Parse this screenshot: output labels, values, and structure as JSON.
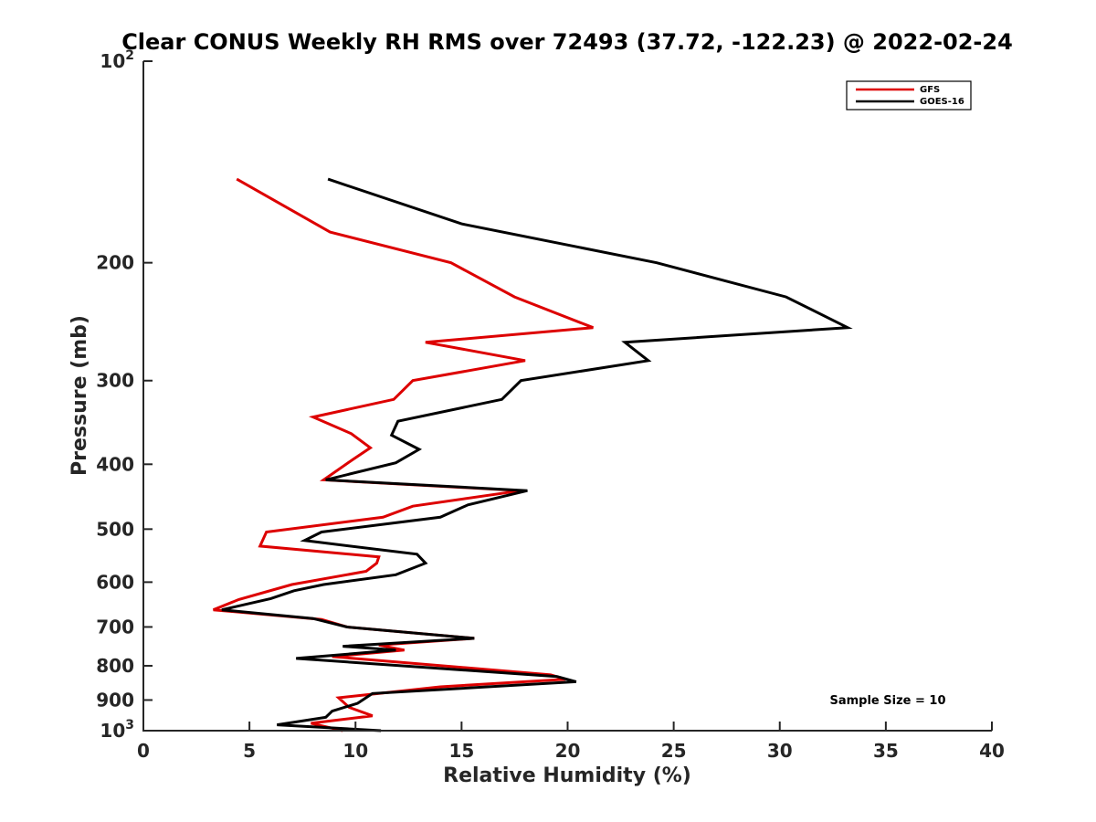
{
  "chart_data": {
    "type": "line",
    "title": "Clear CONUS Weekly RH RMS over 72493 (37.72, -122.23) @ 2022-02-24",
    "xlabel": "Relative Humidity (%)",
    "ylabel": "Pressure (mb)",
    "xlim": [
      0,
      40
    ],
    "ylim": [
      100,
      1000
    ],
    "y_scale": "log",
    "y_reversed": true,
    "grid": false,
    "legend_position": "top-right",
    "x_ticks": [
      "0",
      "5",
      "10",
      "15",
      "20",
      "25",
      "30",
      "35",
      "40"
    ],
    "y_ticks": [
      {
        "value": 100,
        "base": "10",
        "exp": "2"
      },
      {
        "value": 200,
        "label": "200"
      },
      {
        "value": 300,
        "label": "300"
      },
      {
        "value": 400,
        "label": "400"
      },
      {
        "value": 500,
        "label": "500"
      },
      {
        "value": 600,
        "label": "600"
      },
      {
        "value": 700,
        "label": "700"
      },
      {
        "value": 800,
        "label": "800"
      },
      {
        "value": 900,
        "label": "900"
      },
      {
        "value": 1000,
        "base": "10",
        "exp": "3"
      }
    ],
    "annotation": "Sample Size = 10",
    "series": [
      {
        "name": "GFS",
        "color": "#dd0000",
        "points": [
          [
            4.4,
            150
          ],
          [
            8.8,
            180
          ],
          [
            14.5,
            200
          ],
          [
            17.5,
            225
          ],
          [
            21.2,
            250
          ],
          [
            13.3,
            263
          ],
          [
            18.0,
            280
          ],
          [
            12.7,
            300
          ],
          [
            11.8,
            320
          ],
          [
            8.0,
            340
          ],
          [
            9.8,
            360
          ],
          [
            10.7,
            378
          ],
          [
            9.9,
            393
          ],
          [
            8.5,
            422
          ],
          [
            17.8,
            438
          ],
          [
            12.7,
            462
          ],
          [
            11.3,
            480
          ],
          [
            5.8,
            505
          ],
          [
            5.5,
            530
          ],
          [
            11.1,
            550
          ],
          [
            11.0,
            562
          ],
          [
            10.5,
            578
          ],
          [
            7.0,
            605
          ],
          [
            4.5,
            637
          ],
          [
            3.3,
            660
          ],
          [
            8.4,
            682
          ],
          [
            9.6,
            700
          ],
          [
            15.6,
            728
          ],
          [
            11.1,
            745
          ],
          [
            12.3,
            758
          ],
          [
            8.9,
            775
          ],
          [
            19.2,
            825
          ],
          [
            19.9,
            838
          ],
          [
            14.0,
            860
          ],
          [
            9.2,
            893
          ],
          [
            9.7,
            923
          ],
          [
            10.8,
            950
          ],
          [
            7.9,
            975
          ],
          [
            9.4,
            1000
          ]
        ]
      },
      {
        "name": "GOES-16",
        "color": "#000000",
        "points": [
          [
            8.7,
            150
          ],
          [
            15.0,
            175
          ],
          [
            24.2,
            200
          ],
          [
            30.3,
            225
          ],
          [
            33.2,
            250
          ],
          [
            22.7,
            263
          ],
          [
            23.8,
            280
          ],
          [
            17.8,
            300
          ],
          [
            16.9,
            320
          ],
          [
            12.0,
            345
          ],
          [
            11.7,
            362
          ],
          [
            13.0,
            380
          ],
          [
            11.9,
            398
          ],
          [
            8.6,
            422
          ],
          [
            18.1,
            438
          ],
          [
            15.3,
            460
          ],
          [
            14.0,
            480
          ],
          [
            8.4,
            505
          ],
          [
            7.6,
            520
          ],
          [
            12.9,
            545
          ],
          [
            13.3,
            562
          ],
          [
            11.9,
            585
          ],
          [
            8.5,
            605
          ],
          [
            7.1,
            618
          ],
          [
            6.0,
            635
          ],
          [
            3.7,
            660
          ],
          [
            8.0,
            680
          ],
          [
            9.6,
            700
          ],
          [
            15.6,
            728
          ],
          [
            9.4,
            748
          ],
          [
            11.9,
            758
          ],
          [
            7.2,
            780
          ],
          [
            19.5,
            830
          ],
          [
            20.4,
            845
          ],
          [
            10.8,
            880
          ],
          [
            10.1,
            910
          ],
          [
            8.9,
            935
          ],
          [
            8.6,
            955
          ],
          [
            6.3,
            980
          ],
          [
            11.2,
            1000
          ]
        ]
      }
    ]
  }
}
